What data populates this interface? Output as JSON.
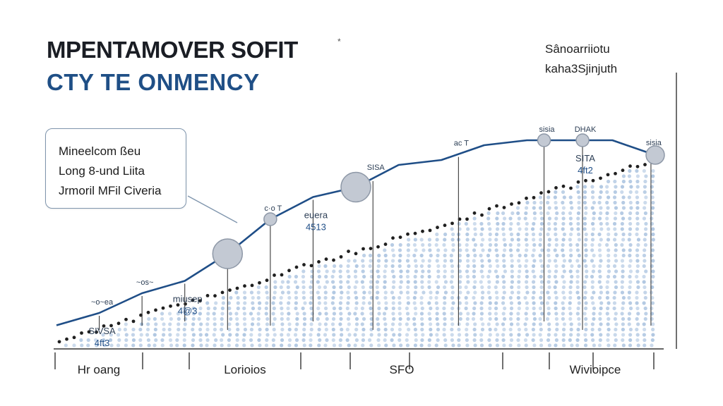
{
  "chart_data": {
    "type": "line",
    "title": "MPENTAMOVER SOFIT",
    "title_mark": "*",
    "subtitle": "CTY TE ONMENCY",
    "corner_labels": [
      "Sânoarriiotu",
      "kaha3Sjinjuth"
    ],
    "callout": [
      "Mineelcom ßeu",
      "Long 8-und Liita",
      "Jrmoril MFil Civeria"
    ],
    "x_tick_labels": [
      "Hr oang",
      "Lorioios",
      "SFO",
      "Wivioipce"
    ],
    "line_series": {
      "x": [
        0,
        1,
        2,
        3,
        4,
        5,
        6,
        7,
        8,
        9,
        10,
        11,
        12,
        13,
        14
      ],
      "values": [
        0.09,
        0.14,
        0.22,
        0.27,
        0.38,
        0.52,
        0.61,
        0.65,
        0.74,
        0.76,
        0.82,
        0.84,
        0.84,
        0.84,
        0.78
      ]
    },
    "scatter_trend": {
      "x_range": [
        0,
        14
      ],
      "values_start": 0.02,
      "values_end": 0.76
    },
    "highlight_points": [
      {
        "x": 4,
        "value": 0.38,
        "size": "large"
      },
      {
        "x": 5,
        "value": 0.52,
        "size": "small"
      },
      {
        "x": 7,
        "value": 0.65,
        "size": "large"
      },
      {
        "x": 11.4,
        "value": 0.84,
        "size": "small"
      },
      {
        "x": 12.3,
        "value": 0.84,
        "size": "small"
      },
      {
        "x": 14,
        "value": 0.78,
        "size": "medium"
      }
    ],
    "annotations": [
      {
        "x": 1,
        "value": 0.14,
        "lines": [
          "~o~ea"
        ],
        "above": true
      },
      {
        "x": 1,
        "value": 0.14,
        "lines": [
          "SIVSA",
          "4ft3"
        ],
        "above": false
      },
      {
        "x": 2,
        "value": 0.22,
        "lines": [
          "~os~"
        ],
        "above": true
      },
      {
        "x": 3,
        "value": 0.27,
        "lines": [
          "miusep",
          "4@3"
        ],
        "above": false
      },
      {
        "x": 5,
        "value": 0.52,
        "lines": [
          "c·o T"
        ],
        "above": true
      },
      {
        "x": 6,
        "value": 0.61,
        "lines": [
          "euera",
          "4513"
        ],
        "above": false
      },
      {
        "x": 7.4,
        "value": 0.65,
        "lines": [
          "SISA"
        ],
        "above": true
      },
      {
        "x": 9.4,
        "value": 0.76,
        "lines": [
          "ac T"
        ],
        "above": true
      },
      {
        "x": 11.4,
        "value": 0.84,
        "lines": [
          "sisia"
        ],
        "above": true
      },
      {
        "x": 12.3,
        "value": 0.84,
        "lines": [
          "DHAK"
        ],
        "above": true
      },
      {
        "x": 12.3,
        "value": 0.84,
        "lines": [
          "SITA",
          "4ft2"
        ],
        "above": false
      },
      {
        "x": 13.9,
        "value": 0.84,
        "lines": [
          "sisia"
        ],
        "above": true
      }
    ],
    "grid": false,
    "colors": {
      "line": "#1f4e87",
      "drop": "#3a3a3a",
      "marker_fill": "#c3c9d3",
      "marker_stroke": "#8e98a7",
      "scatter_fill": "#a9c2df",
      "scatter_dark": "#202020",
      "axis": "#333333",
      "callout_border": "#7f95ad"
    }
  }
}
